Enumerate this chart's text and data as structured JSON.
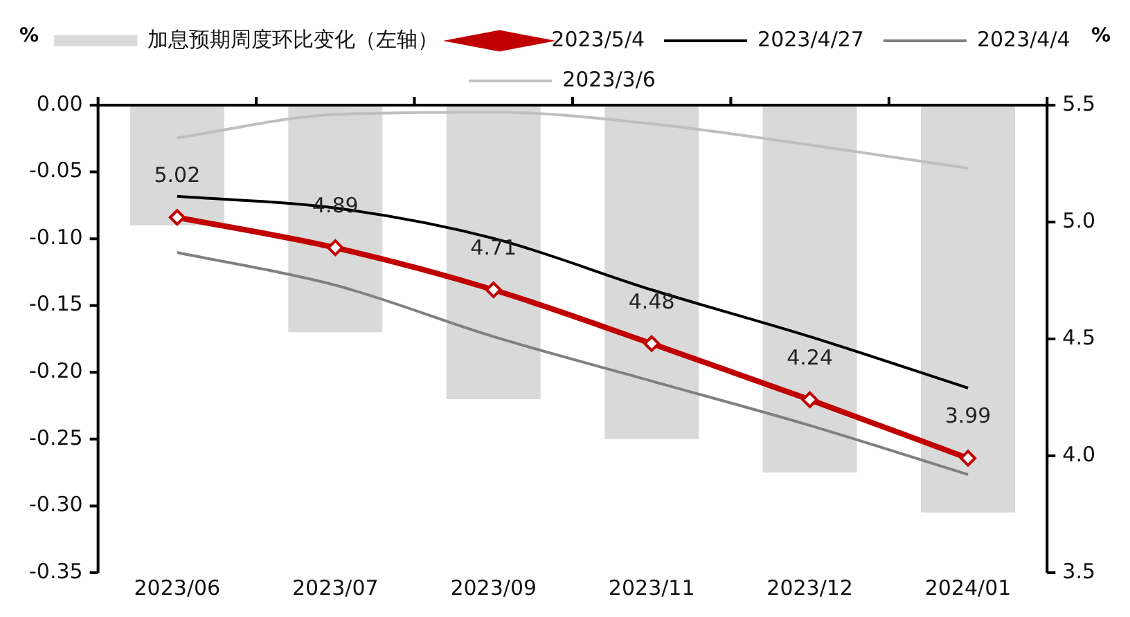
{
  "chart_data": {
    "type": "bar",
    "ylabel": "%",
    "y2label": "%",
    "categories": [
      "2023/06",
      "2023/07",
      "2023/09",
      "2023/11",
      "2023/12",
      "2024/01"
    ],
    "series": [
      {
        "name": "加息预期周度环比变化（左轴）",
        "color": "#d9d9d9",
        "values": [
          -0.09,
          -0.17,
          -0.22,
          -0.25,
          -0.275,
          -0.305
        ]
      },
      {
        "name": "2023/5/4",
        "type": "line",
        "axis": "y2",
        "color": "#c00000",
        "marker": "diamond",
        "values": [
          5.02,
          4.89,
          4.71,
          4.48,
          4.24,
          3.99
        ],
        "value_labels": [
          "5.02",
          "4.89",
          "4.71",
          "4.48",
          "4.24",
          "3.99"
        ]
      },
      {
        "name": "2023/4/27",
        "type": "line",
        "axis": "y2",
        "color": "#000000",
        "marker": "none",
        "values": [
          5.11,
          5.06,
          4.93,
          4.71,
          4.51,
          4.29
        ]
      },
      {
        "name": "2023/4/4",
        "type": "line",
        "axis": "y2",
        "color": "#808080",
        "marker": "none",
        "values": [
          4.87,
          4.73,
          4.51,
          4.32,
          4.13,
          3.92
        ]
      },
      {
        "name": "2023/3/6",
        "type": "line",
        "axis": "y2",
        "color": "#bfbfbf",
        "marker": "none",
        "values": [
          5.36,
          5.46,
          5.47,
          5.42,
          5.33,
          5.23
        ]
      }
    ],
    "ylim": [
      -0.35,
      0
    ],
    "yticks": [
      {
        "value": -0.35,
        "label": "-0.35"
      },
      {
        "value": -0.3,
        "label": "-0.30"
      },
      {
        "value": -0.25,
        "label": "-0.25"
      },
      {
        "value": -0.2,
        "label": "-0.20"
      },
      {
        "value": -0.15,
        "label": "-0.15"
      },
      {
        "value": -0.1,
        "label": "-0.10"
      },
      {
        "value": -0.05,
        "label": "-0.05"
      },
      {
        "value": 0,
        "label": "0.00"
      }
    ],
    "y2lim": [
      3.5,
      5.5
    ],
    "y2ticks": [
      {
        "value": 3.5,
        "label": "3.5"
      },
      {
        "value": 4,
        "label": "4.0"
      },
      {
        "value": 4.5,
        "label": "4.5"
      },
      {
        "value": 5,
        "label": "5.0"
      },
      {
        "value": 5.5,
        "label": "5.5"
      }
    ],
    "grid": false,
    "legend": "top"
  }
}
